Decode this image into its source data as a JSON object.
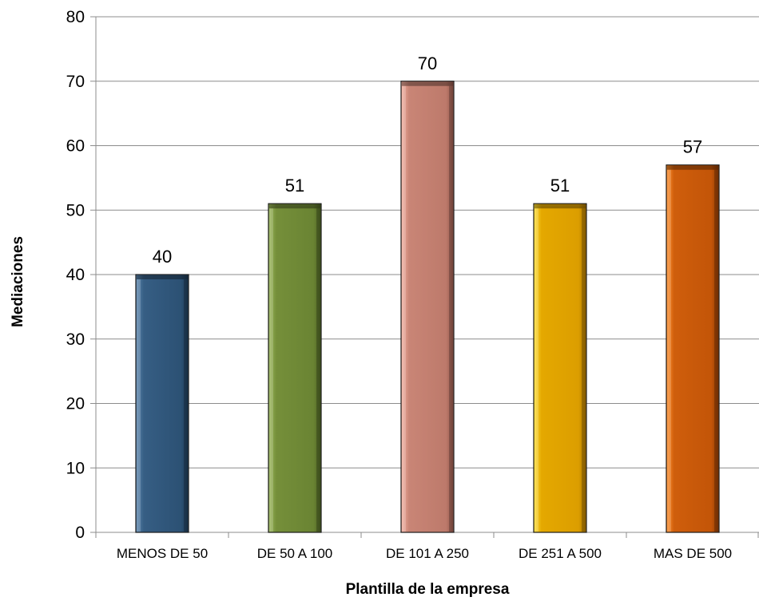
{
  "chart_data": {
    "type": "bar",
    "categories": [
      "MENOS DE 50",
      "DE 50 A 100",
      "DE 101 A 250",
      "DE 251 A 500",
      "MAS DE 500"
    ],
    "values": [
      40,
      51,
      70,
      51,
      57
    ],
    "xlabel": "Plantilla de la empresa",
    "ylabel": "Mediaciones",
    "ylim": [
      0,
      80
    ],
    "yticks": [
      0,
      10,
      20,
      30,
      40,
      50,
      60,
      70,
      80
    ],
    "grid": true,
    "data_labels": true,
    "colors": [
      "#2f5578",
      "#6f8a36",
      "#c27e6e",
      "#e0a100",
      "#c8580a"
    ]
  }
}
